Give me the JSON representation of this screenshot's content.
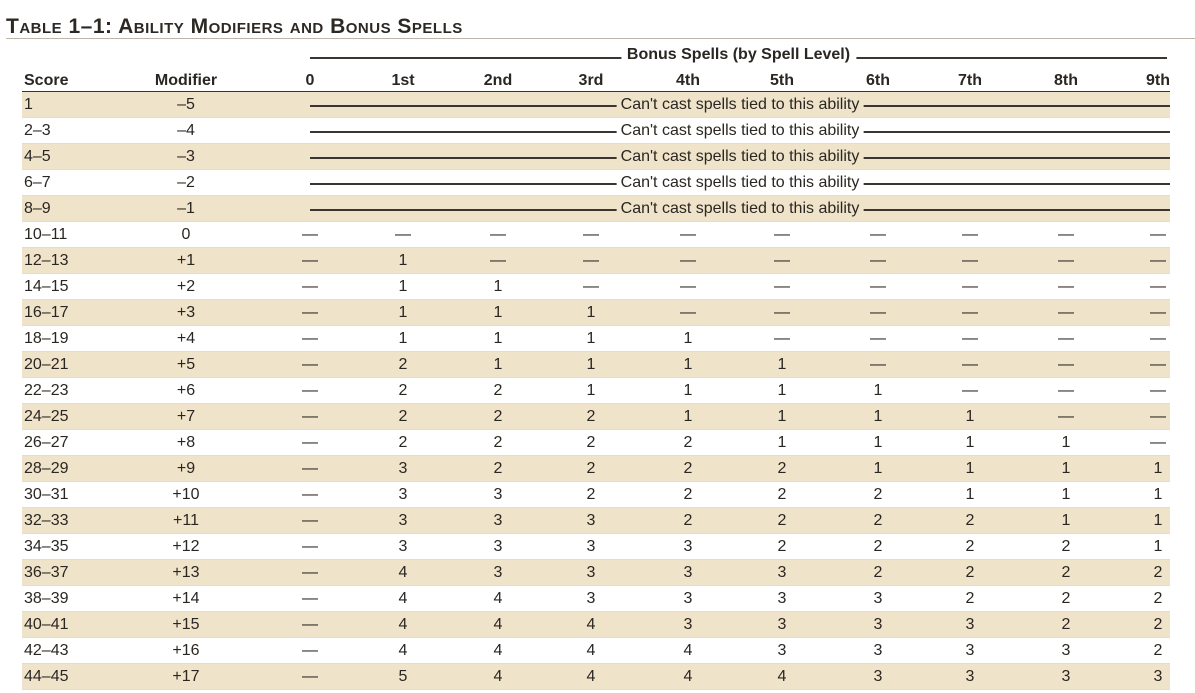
{
  "title": "Table 1–1: Ability Modifiers and Bonus Spells",
  "group_header": "Bonus Spells (by Spell Level)",
  "columns": [
    "Score",
    "Modifier",
    "0",
    "1st",
    "2nd",
    "3rd",
    "4th",
    "5th",
    "6th",
    "7th",
    "8th",
    "9th"
  ],
  "cant_cast_text": "Can't cast spells tied to this ability",
  "rows": [
    {
      "score": "1",
      "modifier": "–5",
      "cant_cast": true
    },
    {
      "score": "2–3",
      "modifier": "–4",
      "cant_cast": true
    },
    {
      "score": "4–5",
      "modifier": "–3",
      "cant_cast": true
    },
    {
      "score": "6–7",
      "modifier": "–2",
      "cant_cast": true
    },
    {
      "score": "8–9",
      "modifier": "–1",
      "cant_cast": true
    },
    {
      "score": "10–11",
      "modifier": "0",
      "spells": [
        "—",
        "—",
        "—",
        "—",
        "—",
        "—",
        "—",
        "—",
        "—",
        "—"
      ]
    },
    {
      "score": "12–13",
      "modifier": "+1",
      "spells": [
        "—",
        "1",
        "—",
        "—",
        "—",
        "—",
        "—",
        "—",
        "—",
        "—"
      ]
    },
    {
      "score": "14–15",
      "modifier": "+2",
      "spells": [
        "—",
        "1",
        "1",
        "—",
        "—",
        "—",
        "—",
        "—",
        "—",
        "—"
      ]
    },
    {
      "score": "16–17",
      "modifier": "+3",
      "spells": [
        "—",
        "1",
        "1",
        "1",
        "—",
        "—",
        "—",
        "—",
        "—",
        "—"
      ]
    },
    {
      "score": "18–19",
      "modifier": "+4",
      "spells": [
        "—",
        "1",
        "1",
        "1",
        "1",
        "—",
        "—",
        "—",
        "—",
        "—"
      ]
    },
    {
      "score": "20–21",
      "modifier": "+5",
      "spells": [
        "—",
        "2",
        "1",
        "1",
        "1",
        "1",
        "—",
        "—",
        "—",
        "—"
      ]
    },
    {
      "score": "22–23",
      "modifier": "+6",
      "spells": [
        "—",
        "2",
        "2",
        "1",
        "1",
        "1",
        "1",
        "—",
        "—",
        "—"
      ]
    },
    {
      "score": "24–25",
      "modifier": "+7",
      "spells": [
        "—",
        "2",
        "2",
        "2",
        "1",
        "1",
        "1",
        "1",
        "—",
        "—"
      ]
    },
    {
      "score": "26–27",
      "modifier": "+8",
      "spells": [
        "—",
        "2",
        "2",
        "2",
        "2",
        "1",
        "1",
        "1",
        "1",
        "—"
      ]
    },
    {
      "score": "28–29",
      "modifier": "+9",
      "spells": [
        "—",
        "3",
        "2",
        "2",
        "2",
        "2",
        "1",
        "1",
        "1",
        "1"
      ]
    },
    {
      "score": "30–31",
      "modifier": "+10",
      "spells": [
        "—",
        "3",
        "3",
        "2",
        "2",
        "2",
        "2",
        "1",
        "1",
        "1"
      ]
    },
    {
      "score": "32–33",
      "modifier": "+11",
      "spells": [
        "—",
        "3",
        "3",
        "3",
        "2",
        "2",
        "2",
        "2",
        "1",
        "1"
      ]
    },
    {
      "score": "34–35",
      "modifier": "+12",
      "spells": [
        "—",
        "3",
        "3",
        "3",
        "3",
        "2",
        "2",
        "2",
        "2",
        "1"
      ]
    },
    {
      "score": "36–37",
      "modifier": "+13",
      "spells": [
        "—",
        "4",
        "3",
        "3",
        "3",
        "3",
        "2",
        "2",
        "2",
        "2"
      ]
    },
    {
      "score": "38–39",
      "modifier": "+14",
      "spells": [
        "—",
        "4",
        "4",
        "3",
        "3",
        "3",
        "3",
        "2",
        "2",
        "2"
      ]
    },
    {
      "score": "40–41",
      "modifier": "+15",
      "spells": [
        "—",
        "4",
        "4",
        "4",
        "3",
        "3",
        "3",
        "3",
        "2",
        "2"
      ]
    },
    {
      "score": "42–43",
      "modifier": "+16",
      "spells": [
        "—",
        "4",
        "4",
        "4",
        "4",
        "3",
        "3",
        "3",
        "3",
        "2"
      ]
    },
    {
      "score": "44–45",
      "modifier": "+17",
      "spells": [
        "—",
        "5",
        "4",
        "4",
        "4",
        "4",
        "3",
        "3",
        "3",
        "3"
      ]
    }
  ],
  "colors": {
    "shade": "#efe3c9",
    "text": "#2a2622",
    "rule": "#3a3530"
  }
}
